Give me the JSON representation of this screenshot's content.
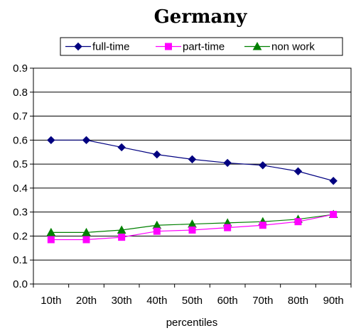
{
  "chart_data": {
    "type": "line",
    "title": "Germany",
    "xlabel": "percentiles",
    "ylabel": "",
    "categories": [
      "10th",
      "20th",
      "30th",
      "40th",
      "50th",
      "60th",
      "70th",
      "80th",
      "90th"
    ],
    "ylim": [
      0,
      0.9
    ],
    "yticks": [
      "0.0",
      "0.1",
      "0.2",
      "0.3",
      "0.4",
      "0.5",
      "0.6",
      "0.7",
      "0.8",
      "0.9"
    ],
    "grid": "horizontal",
    "legend_position": "top",
    "series": [
      {
        "name": "full-time",
        "color": "#000080",
        "marker": "diamond",
        "values": [
          0.6,
          0.6,
          0.57,
          0.54,
          0.52,
          0.505,
          0.495,
          0.47,
          0.43
        ]
      },
      {
        "name": "part-time",
        "color": "#ff00ff",
        "marker": "square",
        "values": [
          0.185,
          0.185,
          0.195,
          0.22,
          0.225,
          0.235,
          0.245,
          0.26,
          0.29
        ]
      },
      {
        "name": "non work",
        "color": "#008000",
        "marker": "triangle",
        "values": [
          0.215,
          0.215,
          0.225,
          0.245,
          0.25,
          0.255,
          0.26,
          0.27,
          0.29
        ]
      }
    ]
  }
}
